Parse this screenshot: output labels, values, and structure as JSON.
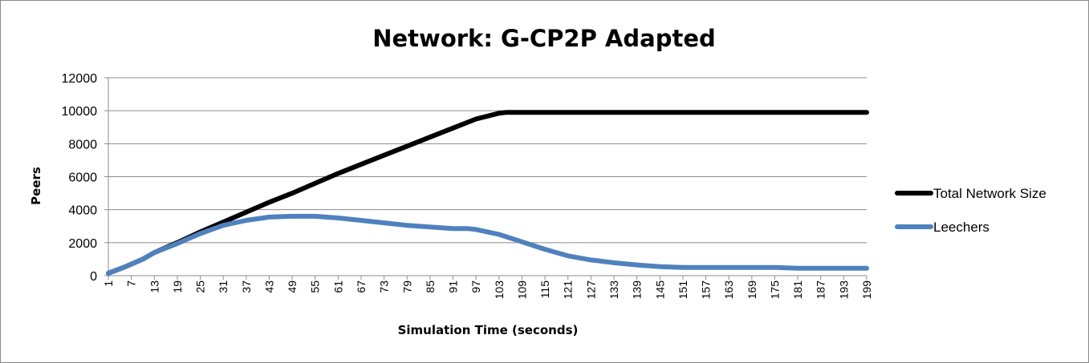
{
  "chart_data": {
    "type": "line",
    "title": "Network: G-CP2P Adapted",
    "xlabel": "Simulation Time (seconds)",
    "ylabel": "Peers",
    "ylim": [
      0,
      12000
    ],
    "yticks": [
      "0",
      "2000",
      "4000",
      "6000",
      "8000",
      "10000",
      "12000"
    ],
    "xlim": [
      1,
      199
    ],
    "xtick_labels": [
      "1",
      "7",
      "13",
      "19",
      "25",
      "31",
      "37",
      "43",
      "49",
      "55",
      "61",
      "67",
      "73",
      "79",
      "85",
      "91",
      "97",
      "103",
      "109",
      "115",
      "121",
      "127",
      "133",
      "139",
      "145",
      "151",
      "157",
      "163",
      "169",
      "175",
      "181",
      "187",
      "193",
      "199"
    ],
    "grid": "horizontal",
    "legend_position": "right",
    "series": [
      {
        "name": "Total Network Size",
        "color": "#000000",
        "points": [
          [
            1,
            150
          ],
          [
            5,
            500
          ],
          [
            10,
            1000
          ],
          [
            13,
            1400
          ],
          [
            19,
            2000
          ],
          [
            25,
            2650
          ],
          [
            31,
            3250
          ],
          [
            37,
            3850
          ],
          [
            43,
            4450
          ],
          [
            49,
            5000
          ],
          [
            55,
            5600
          ],
          [
            61,
            6200
          ],
          [
            67,
            6750
          ],
          [
            73,
            7300
          ],
          [
            79,
            7850
          ],
          [
            85,
            8400
          ],
          [
            91,
            8950
          ],
          [
            97,
            9500
          ],
          [
            103,
            9850
          ],
          [
            105,
            9900
          ],
          [
            120,
            9900
          ],
          [
            150,
            9900
          ],
          [
            199,
            9900
          ]
        ]
      },
      {
        "name": "Leechers",
        "color": "#4f81bd",
        "points": [
          [
            1,
            150
          ],
          [
            5,
            500
          ],
          [
            10,
            1000
          ],
          [
            13,
            1400
          ],
          [
            19,
            1950
          ],
          [
            25,
            2550
          ],
          [
            31,
            3050
          ],
          [
            37,
            3350
          ],
          [
            43,
            3550
          ],
          [
            49,
            3600
          ],
          [
            55,
            3600
          ],
          [
            61,
            3500
          ],
          [
            67,
            3350
          ],
          [
            73,
            3200
          ],
          [
            79,
            3050
          ],
          [
            85,
            2950
          ],
          [
            91,
            2850
          ],
          [
            95,
            2850
          ],
          [
            97,
            2800
          ],
          [
            103,
            2500
          ],
          [
            109,
            2050
          ],
          [
            115,
            1600
          ],
          [
            121,
            1200
          ],
          [
            127,
            950
          ],
          [
            133,
            780
          ],
          [
            139,
            650
          ],
          [
            145,
            550
          ],
          [
            151,
            500
          ],
          [
            157,
            500
          ],
          [
            163,
            500
          ],
          [
            169,
            500
          ],
          [
            175,
            500
          ],
          [
            181,
            450
          ],
          [
            187,
            450
          ],
          [
            193,
            450
          ],
          [
            199,
            450
          ]
        ]
      }
    ]
  }
}
